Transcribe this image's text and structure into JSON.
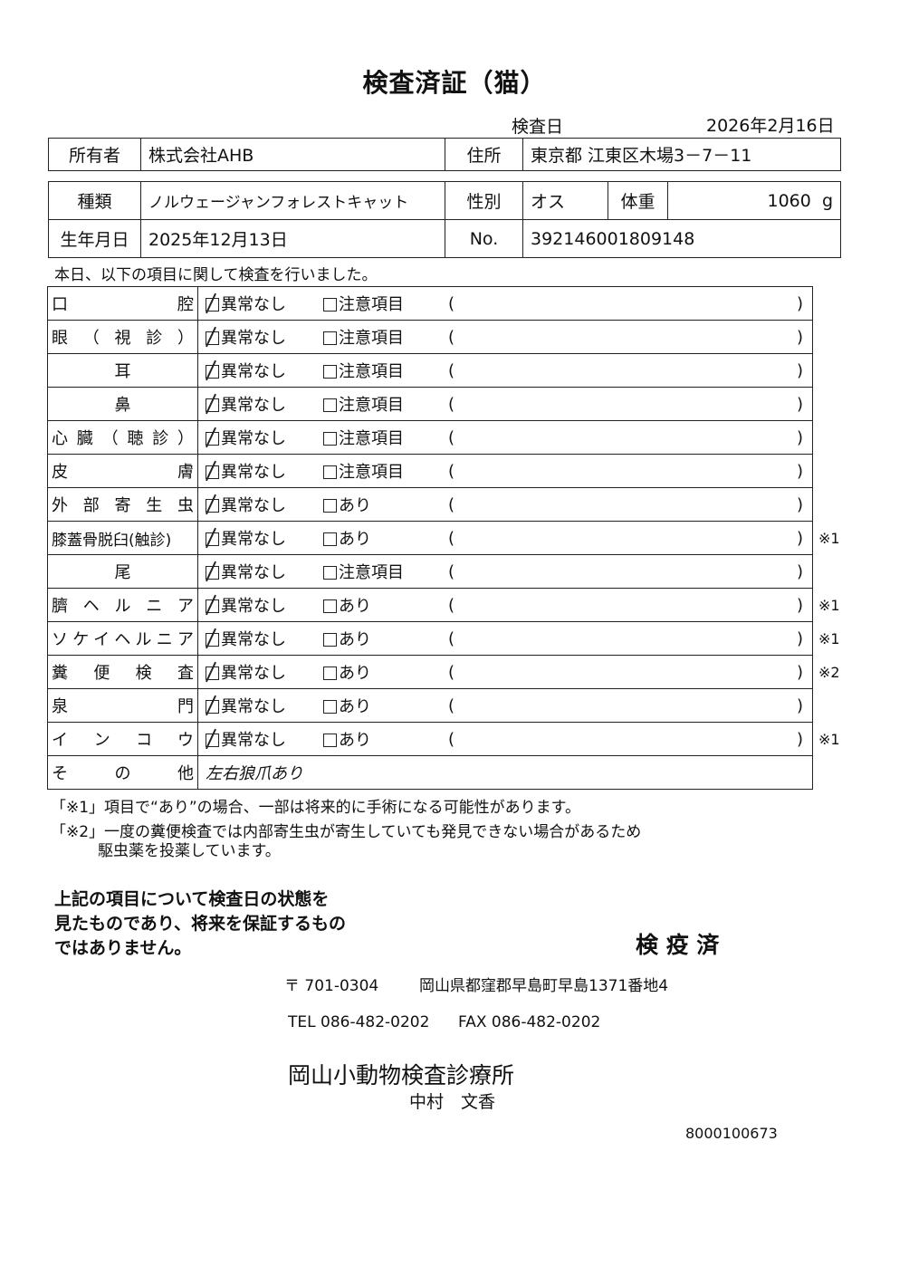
{
  "title": "検査済証（猫）",
  "exam_date_label": "検査日",
  "exam_date": "2026年2月16日",
  "owner": {
    "label": "所有者",
    "value": "株式会社AHB"
  },
  "address": {
    "label": "住所",
    "value": "東京都 江東区木場3－7－11"
  },
  "breed": {
    "label": "種類",
    "value": "ノルウェージャンフォレストキャット"
  },
  "sex": {
    "label": "性別",
    "value": "オス"
  },
  "weight": {
    "label": "体重",
    "value": "1060",
    "unit": "g"
  },
  "birth": {
    "label": "生年月日",
    "value": "2025年12月13日"
  },
  "number": {
    "label": "No.",
    "value": "392146001809148"
  },
  "intro": "本日、以下の項目に関して検査を行いました。",
  "rows": [
    {
      "label": "口　腔",
      "normal": "異常なし",
      "other": "注意項目",
      "checked": true,
      "note": ""
    },
    {
      "label": "眼（視診）",
      "normal": "異常なし",
      "other": "注意項目",
      "checked": true,
      "note": ""
    },
    {
      "label": "耳",
      "normal": "異常なし",
      "other": "注意項目",
      "checked": true,
      "note": ""
    },
    {
      "label": "鼻",
      "normal": "異常なし",
      "other": "注意項目",
      "checked": true,
      "note": ""
    },
    {
      "label": "心臓（聴診）",
      "normal": "異常なし",
      "other": "注意項目",
      "checked": true,
      "note": ""
    },
    {
      "label": "皮　膚",
      "normal": "異常なし",
      "other": "注意項目",
      "checked": true,
      "note": ""
    },
    {
      "label": "外部寄生虫",
      "normal": "異常なし",
      "other": "あり",
      "checked": true,
      "note": ""
    },
    {
      "label": "膝蓋骨脱臼(触診)",
      "normal": "異常なし",
      "other": "あり",
      "checked": true,
      "note": "※1"
    },
    {
      "label": "尾",
      "normal": "異常なし",
      "other": "注意項目",
      "checked": true,
      "note": ""
    },
    {
      "label": "臍ヘルニア",
      "normal": "異常なし",
      "other": "あり",
      "checked": true,
      "note": "※1"
    },
    {
      "label": "ソケイヘルニア",
      "normal": "異常なし",
      "other": "あり",
      "checked": true,
      "note": "※1"
    },
    {
      "label": "糞便検査",
      "normal": "異常なし",
      "other": "あり",
      "checked": true,
      "note": "※2"
    },
    {
      "label": "泉　門",
      "normal": "異常なし",
      "other": "あり",
      "checked": true,
      "note": ""
    },
    {
      "label": "インコウ",
      "normal": "異常なし",
      "other": "あり",
      "checked": true,
      "note": "※1"
    }
  ],
  "other_row": {
    "label": "その他",
    "value": "左右狼爪あり"
  },
  "paren_open": "(",
  "paren_close": ")",
  "footnote1": "「※1」項目で“あり”の場合、一部は将来的に手術になる可能性があります。",
  "footnote2a": "「※2」一度の糞便検査では内部寄生虫が寄生していても発見できない場合があるため",
  "footnote2b": "駆虫薬を投薬しています。",
  "disclaimer": [
    "上記の項目について検査日の状態を",
    "見たものであり、将来を保証するもの",
    "ではありません。"
  ],
  "stamp": "検 疫 済",
  "postal": "〒 701-0304",
  "clinic_address": "岡山県都窪郡早島町早島1371番地4",
  "tel": "TEL 086-482-0202",
  "fax": "FAX 086-482-0202",
  "clinic_name": "岡山小動物検査診療所",
  "vet_name": "中村　文香",
  "doc_number": "8000100673"
}
